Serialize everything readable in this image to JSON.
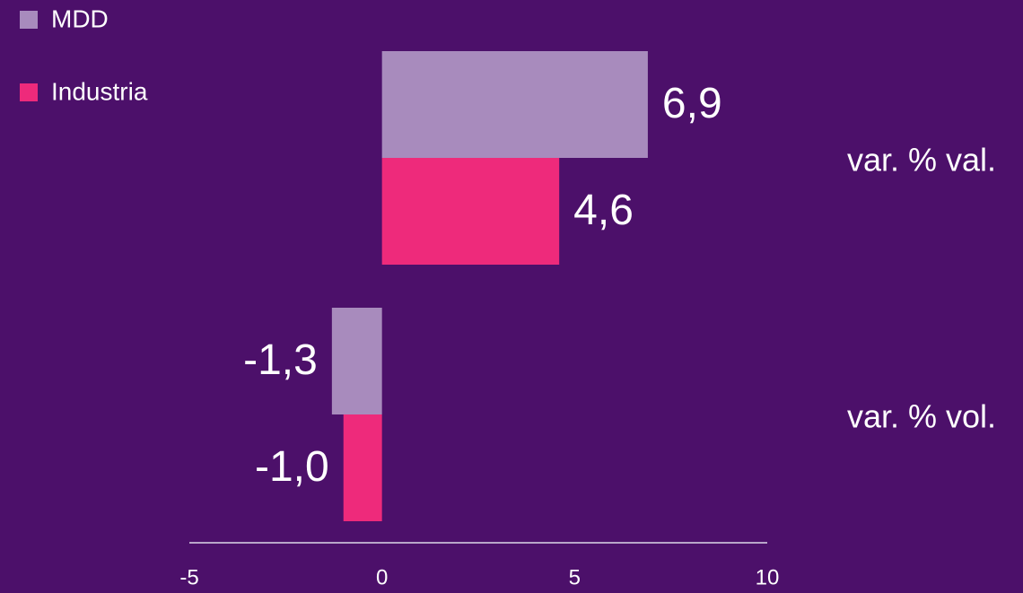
{
  "chart_data": {
    "type": "bar",
    "orientation": "horizontal",
    "categories": [
      "var. % val.",
      "var. % vol."
    ],
    "series": [
      {
        "name": "MDD",
        "color": "#a88bbd",
        "values": [
          6.9,
          -1.3
        ],
        "value_labels": [
          "6,9",
          "-1,3"
        ]
      },
      {
        "name": "Industria",
        "color": "#ee2a7b",
        "values": [
          4.6,
          -1.0
        ],
        "value_labels": [
          "4,6",
          "-1,0"
        ]
      }
    ],
    "xlim": [
      -5,
      10
    ],
    "xticks": [
      -5,
      0,
      5,
      10
    ],
    "legend": "top-left"
  }
}
